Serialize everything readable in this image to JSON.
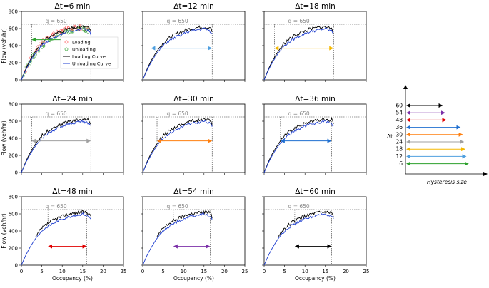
{
  "chart_data": {
    "type": "line",
    "xlabel": "Occupancy (%)",
    "ylabel": "Flow (veh/hr)",
    "xlim": [
      0,
      25
    ],
    "ylim": [
      0,
      800
    ],
    "xticks": [
      0,
      5,
      10,
      15,
      20,
      25
    ],
    "yticks": [
      0,
      200,
      400,
      600,
      800
    ],
    "q_threshold": 650,
    "q_label": "q = 650",
    "legend": {
      "loading": "Loading",
      "unloading": "Unloading",
      "loading_curve": "Loading Curve",
      "unloading_curve": "Unloading Curve"
    },
    "panels": [
      {
        "title": "Δt=6 min",
        "delta_t": 6,
        "arrow_color": "#2ca02c",
        "hysteresis": [
          2.5,
          17.0
        ],
        "loading_points": true
      },
      {
        "title": "Δt=12 min",
        "delta_t": 12,
        "arrow_color": "#4f9fdf",
        "hysteresis": [
          2.0,
          17.0
        ],
        "loading_points": false
      },
      {
        "title": "Δt=18 min",
        "delta_t": 18,
        "arrow_color": "#f5b800",
        "hysteresis": [
          2.5,
          17.0
        ],
        "loading_points": false
      },
      {
        "title": "Δt=24 min",
        "delta_t": 24,
        "arrow_color": "#a0a0a0",
        "hysteresis": [
          2.5,
          17.0
        ],
        "loading_points": false
      },
      {
        "title": "Δt=30 min",
        "delta_t": 30,
        "arrow_color": "#ff7f0e",
        "hysteresis": [
          3.5,
          17.0
        ],
        "loading_points": false
      },
      {
        "title": "Δt=36 min",
        "delta_t": 36,
        "arrow_color": "#1f6fd0",
        "hysteresis": [
          4.0,
          16.5
        ],
        "loading_points": false
      },
      {
        "title": "Δt=48 min",
        "delta_t": 48,
        "arrow_color": "#e00000",
        "hysteresis": [
          6.5,
          16.0
        ],
        "loading_points": false
      },
      {
        "title": "Δt=54 min",
        "delta_t": 54,
        "arrow_color": "#7b2fa8",
        "hysteresis": [
          7.5,
          16.5
        ],
        "loading_points": false
      },
      {
        "title": "Δt=60 min",
        "delta_t": 60,
        "arrow_color": "#000000",
        "hysteresis": [
          7.5,
          16.5
        ],
        "loading_points": false
      }
    ],
    "loading_curve": {
      "x": [
        0,
        1,
        2,
        3,
        4,
        5,
        6,
        7,
        8,
        9,
        10,
        11,
        12,
        13,
        14,
        15,
        16,
        16.5,
        17
      ],
      "y": [
        0,
        120,
        220,
        300,
        370,
        430,
        470,
        505,
        530,
        555,
        570,
        590,
        600,
        610,
        615,
        620,
        610,
        620,
        560
      ]
    },
    "unloading_curve": {
      "x": [
        0,
        1,
        2,
        3,
        4,
        5,
        6,
        7,
        8,
        9,
        10,
        11,
        12,
        13,
        14,
        15,
        16,
        16.5,
        17
      ],
      "y": [
        0,
        110,
        200,
        280,
        345,
        400,
        440,
        470,
        495,
        520,
        540,
        560,
        570,
        580,
        590,
        600,
        580,
        570,
        540
      ]
    },
    "schematic": {
      "axis_label": "Δt",
      "title": "Hysteresis size",
      "levels": [
        {
          "label": "60",
          "color": "#000000",
          "length": 3.0
        },
        {
          "label": "54",
          "color": "#7b2fa8",
          "length": 3.2
        },
        {
          "label": "48",
          "color": "#e00000",
          "length": 3.3
        },
        {
          "label": "36",
          "color": "#1f6fd0",
          "length": 4.5
        },
        {
          "label": "30",
          "color": "#ff7f0e",
          "length": 4.7
        },
        {
          "label": "24",
          "color": "#a0a0a0",
          "length": 4.8
        },
        {
          "label": "18",
          "color": "#f5b800",
          "length": 4.9
        },
        {
          "label": "12",
          "color": "#4f9fdf",
          "length": 5.0
        },
        {
          "label": "6",
          "color": "#2ca02c",
          "length": 5.2
        }
      ]
    }
  }
}
